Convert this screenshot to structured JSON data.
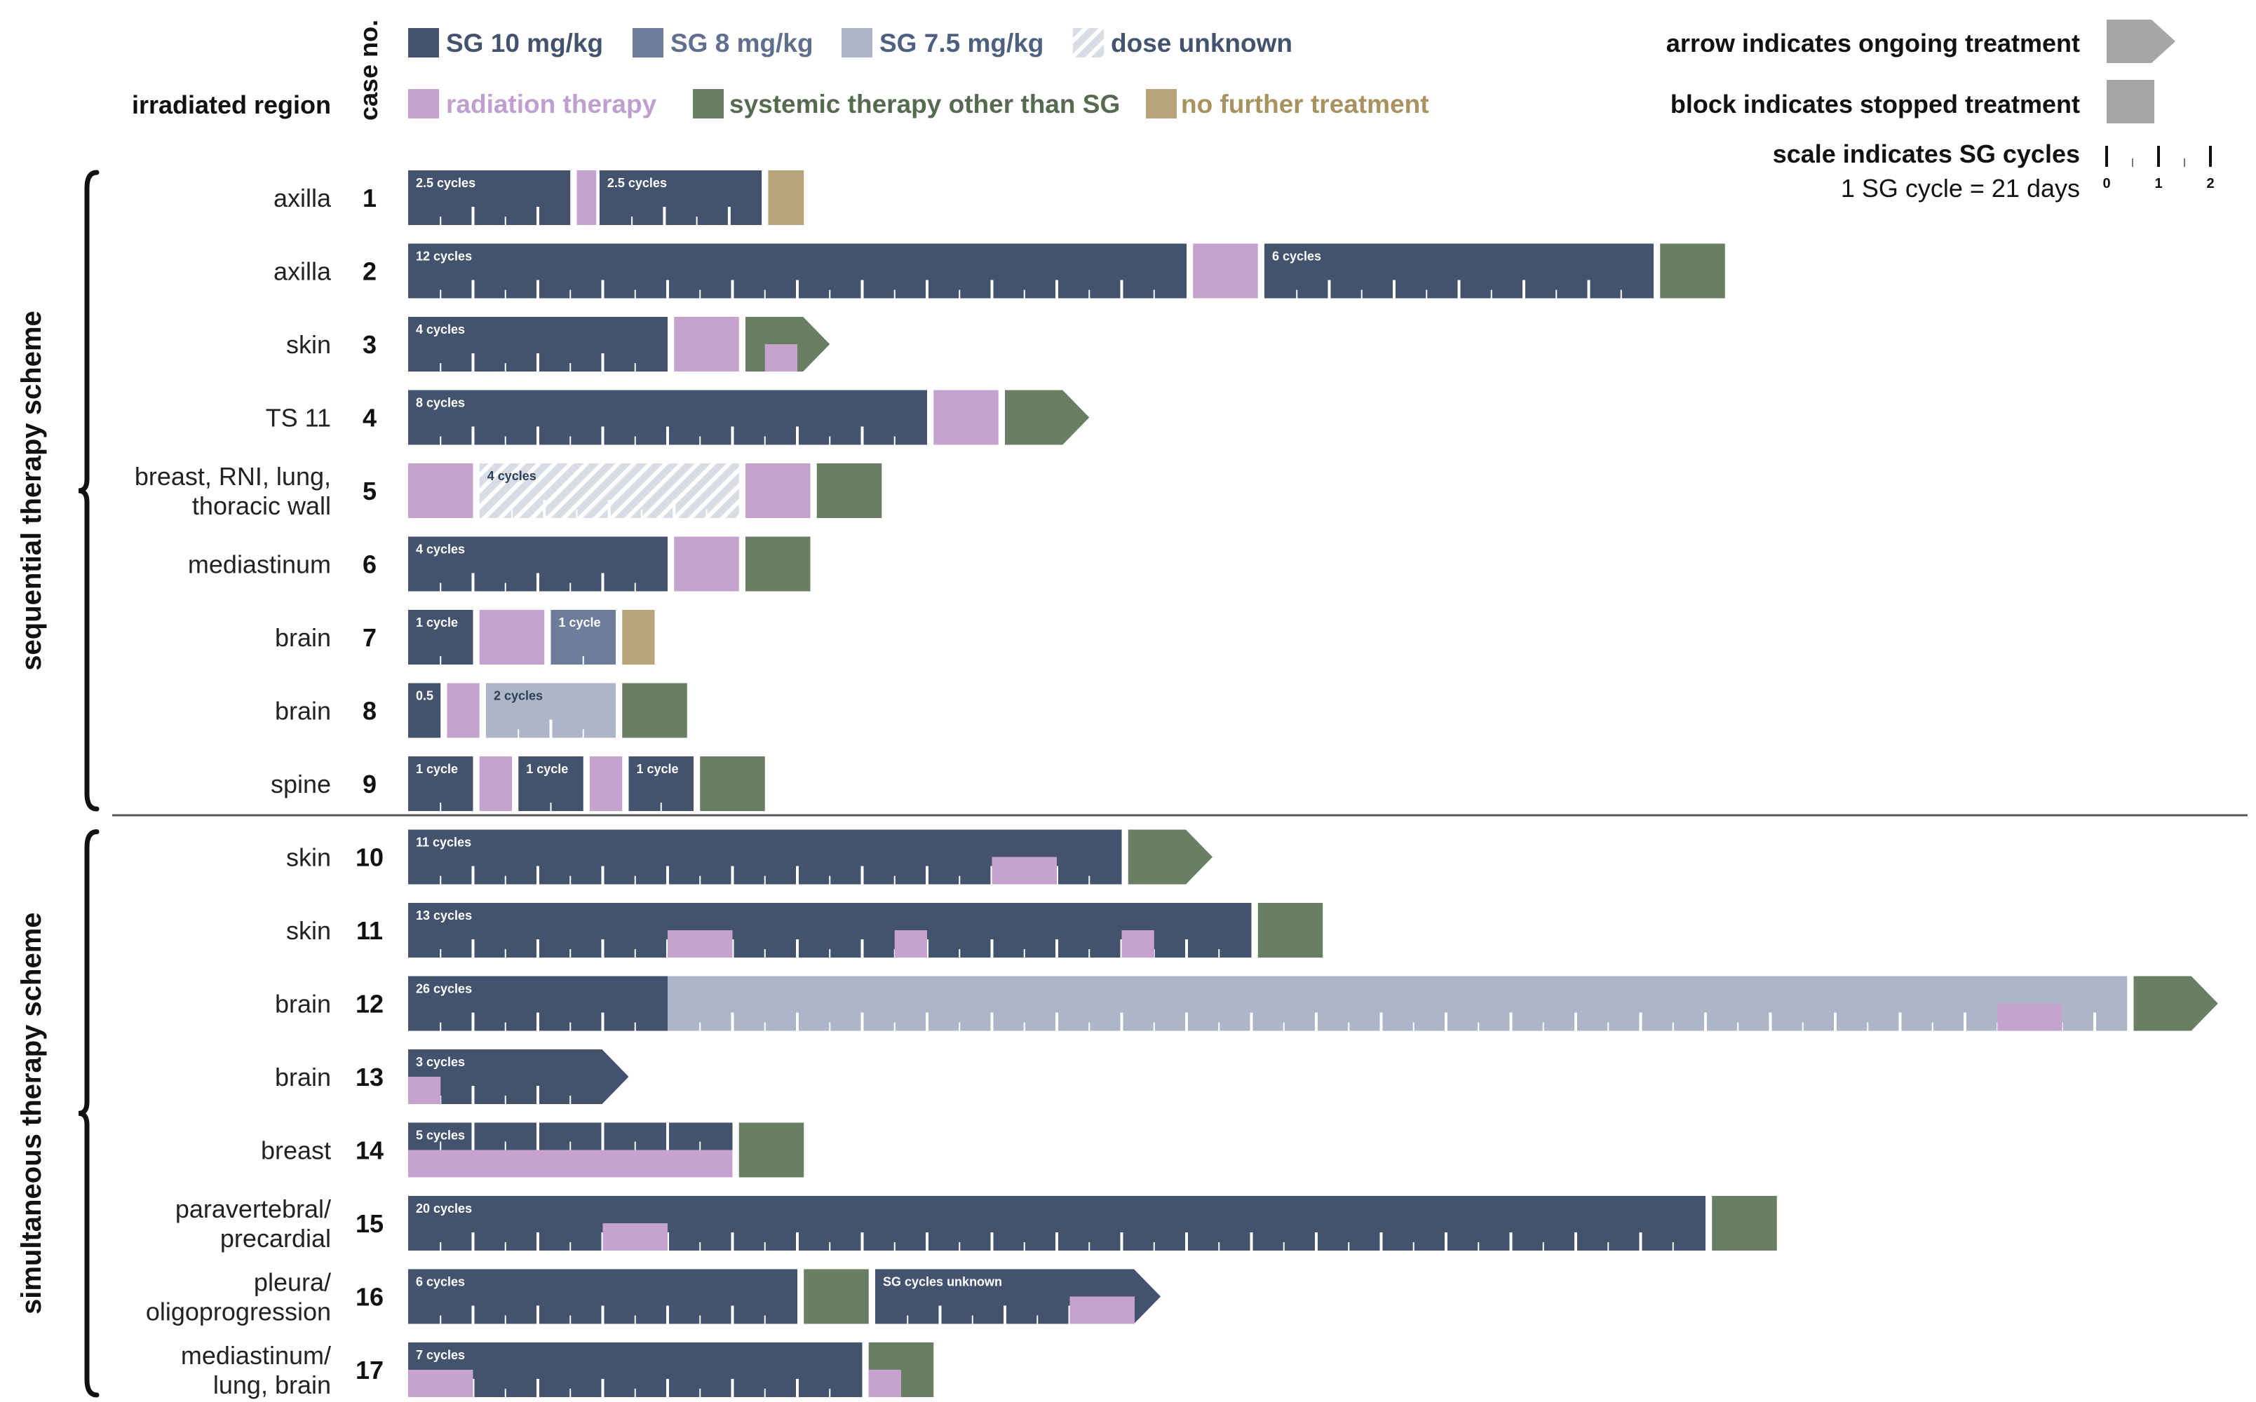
{
  "header": {
    "region_header": "irradiated  region",
    "case_header": "case no."
  },
  "legend": {
    "items": [
      {
        "key": "sg10",
        "label": "SG 10 mg/kg",
        "color": "#43536e",
        "text_color": "#43536e"
      },
      {
        "key": "sg8",
        "label": "SG 8 mg/kg",
        "color": "#6d7c9a",
        "text_color": "#5f6f8d"
      },
      {
        "key": "sg75",
        "label": "SG 7.5 mg/kg",
        "color": "#adb6c8",
        "text_color": "#4e6080"
      },
      {
        "key": "unknown",
        "label": "dose unknown",
        "color": "#c9d0db",
        "text_color": "#43536e"
      },
      {
        "key": "rt",
        "label": "radiation therapy",
        "color": "#c6a3cf",
        "text_color": "#bf9fd0"
      },
      {
        "key": "sys",
        "label": "systemic therapy other than SG",
        "color": "#687f64",
        "text_color": "#556b50"
      },
      {
        "key": "none",
        "label": "no further treatment",
        "color": "#b9a47b",
        "text_color": "#a8925f"
      }
    ],
    "arrow_text": "arrow indicates ongoing treatment",
    "block_text": "block indicates stopped treatment",
    "scale_text": "scale indicates SG cycles",
    "cycle_text": "1 SG cycle = 21 days",
    "scale_ticks": [
      "0",
      "1",
      "2"
    ],
    "indicator_color": "#a6a6a6"
  },
  "schemes": [
    {
      "label": "sequential therapy scheme",
      "cases": [
        1,
        9
      ]
    },
    {
      "label": "simultaneous therapy scheme",
      "cases": [
        10,
        17
      ]
    }
  ],
  "chart_data": {
    "type": "timeline",
    "unit": "SG cycles (1 cycle = 21 days)",
    "rows": [
      {
        "case": "1",
        "region": [
          "axilla"
        ],
        "segments": [
          {
            "t": "sg10",
            "s": 0,
            "d": 2.5,
            "label": "2.5 cycles"
          },
          {
            "t": "rt",
            "s": 2.6,
            "d": 0.3
          },
          {
            "t": "sg10",
            "s": 2.95,
            "d": 2.5,
            "label": "2.5 cycles"
          },
          {
            "t": "none",
            "s": 5.55,
            "d": 0.55
          }
        ]
      },
      {
        "case": "2",
        "region": [
          "axilla"
        ],
        "segments": [
          {
            "t": "sg10",
            "s": 0,
            "d": 12,
            "label": "12 cycles"
          },
          {
            "t": "rt",
            "s": 12.1,
            "d": 1.0
          },
          {
            "t": "sg10",
            "s": 13.2,
            "d": 6,
            "label": "6 cycles"
          },
          {
            "t": "sys",
            "s": 19.3,
            "d": 1.0
          }
        ]
      },
      {
        "case": "3",
        "region": [
          "skin"
        ],
        "segments": [
          {
            "t": "sg10",
            "s": 0,
            "d": 4,
            "label": "4 cycles"
          },
          {
            "t": "rt",
            "s": 4.1,
            "d": 1.0
          },
          {
            "t": "sys",
            "s": 5.2,
            "d": 1.3,
            "arrow": true
          },
          {
            "t": "rt",
            "s": 5.5,
            "d": 0.5,
            "lower": true
          }
        ]
      },
      {
        "case": "4",
        "region": [
          "TS 11"
        ],
        "segments": [
          {
            "t": "sg10",
            "s": 0,
            "d": 8,
            "label": "8 cycles"
          },
          {
            "t": "rt",
            "s": 8.1,
            "d": 1.0
          },
          {
            "t": "sys",
            "s": 9.2,
            "d": 1.3,
            "arrow": true
          }
        ]
      },
      {
        "case": "5",
        "region": [
          "breast, RNI, lung,",
          "thoracic wall"
        ],
        "segments": [
          {
            "t": "rt",
            "s": 0,
            "d": 1.0
          },
          {
            "t": "unknown",
            "s": 1.1,
            "d": 4,
            "label": "4 cycles"
          },
          {
            "t": "rt",
            "s": 5.2,
            "d": 1.0
          },
          {
            "t": "sys",
            "s": 6.3,
            "d": 1.0
          }
        ]
      },
      {
        "case": "6",
        "region": [
          "mediastinum"
        ],
        "segments": [
          {
            "t": "sg10",
            "s": 0,
            "d": 4,
            "label": "4 cycles"
          },
          {
            "t": "rt",
            "s": 4.1,
            "d": 1.0
          },
          {
            "t": "sys",
            "s": 5.2,
            "d": 1.0
          }
        ]
      },
      {
        "case": "7",
        "region": [
          "brain"
        ],
        "segments": [
          {
            "t": "sg10",
            "s": 0,
            "d": 1,
            "label": "1 cycle"
          },
          {
            "t": "rt",
            "s": 1.1,
            "d": 1.0
          },
          {
            "t": "sg8",
            "s": 2.2,
            "d": 1,
            "label": "1 cycle"
          },
          {
            "t": "none",
            "s": 3.3,
            "d": 0.5
          }
        ]
      },
      {
        "case": "8",
        "region": [
          "brain"
        ],
        "segments": [
          {
            "t": "sg10",
            "s": 0,
            "d": 0.5,
            "label": "0.5"
          },
          {
            "t": "rt",
            "s": 0.6,
            "d": 0.5
          },
          {
            "t": "sg75",
            "s": 1.2,
            "d": 2,
            "label": "2 cycles"
          },
          {
            "t": "sys",
            "s": 3.3,
            "d": 1.0
          }
        ]
      },
      {
        "case": "9",
        "region": [
          "spine"
        ],
        "segments": [
          {
            "t": "sg10",
            "s": 0,
            "d": 1,
            "label": "1 cycle"
          },
          {
            "t": "rt",
            "s": 1.1,
            "d": 0.5
          },
          {
            "t": "sg10",
            "s": 1.7,
            "d": 1,
            "label": "1 cycle"
          },
          {
            "t": "rt",
            "s": 2.8,
            "d": 0.5
          },
          {
            "t": "sg10",
            "s": 3.4,
            "d": 1,
            "label": "1 cycle"
          },
          {
            "t": "sys",
            "s": 4.5,
            "d": 1.0
          }
        ]
      },
      {
        "case": "10",
        "region": [
          "skin"
        ],
        "segments": [
          {
            "t": "sg10",
            "s": 0,
            "d": 11,
            "label": "11 cycles"
          },
          {
            "t": "rt",
            "s": 9,
            "d": 1.0,
            "lower": true
          },
          {
            "t": "sys",
            "s": 11.1,
            "d": 1.3,
            "arrow": true
          }
        ]
      },
      {
        "case": "11",
        "region": [
          "skin"
        ],
        "segments": [
          {
            "t": "sg10",
            "s": 0,
            "d": 13,
            "label": "13 cycles"
          },
          {
            "t": "rt",
            "s": 4,
            "d": 1.0,
            "lower": true
          },
          {
            "t": "rt",
            "s": 7.5,
            "d": 0.5,
            "lower": true
          },
          {
            "t": "rt",
            "s": 11,
            "d": 0.5,
            "lower": true
          },
          {
            "t": "sys",
            "s": 13.1,
            "d": 1.0
          }
        ]
      },
      {
        "case": "12",
        "region": [
          "brain"
        ],
        "segments": [
          {
            "t": "sg10",
            "s": 0,
            "d": 4,
            "label": "26 cycles"
          },
          {
            "t": "sg75",
            "s": 4,
            "d": 22.5
          },
          {
            "t": "rt",
            "s": 24.5,
            "d": 1.0,
            "lower": true
          },
          {
            "t": "sys",
            "s": 26.6,
            "d": 1.3,
            "arrow": true
          }
        ]
      },
      {
        "case": "13",
        "region": [
          "brain"
        ],
        "segments": [
          {
            "t": "sg10",
            "s": 0,
            "d": 3.4,
            "label": "3 cycles",
            "arrow": true
          },
          {
            "t": "rt",
            "s": 0,
            "d": 0.5,
            "lower": true
          }
        ]
      },
      {
        "case": "14",
        "region": [
          "breast"
        ],
        "segments": [
          {
            "t": "sg10",
            "s": 0,
            "d": 5,
            "label": "5 cycles",
            "upper": true
          },
          {
            "t": "rt",
            "s": 0,
            "d": 5,
            "lower": true
          },
          {
            "t": "sys",
            "s": 5.1,
            "d": 1.0
          }
        ]
      },
      {
        "case": "15",
        "region": [
          "paravertebral/",
          "precardial"
        ],
        "segments": [
          {
            "t": "sg10",
            "s": 0,
            "d": 20,
            "label": "20 cycles"
          },
          {
            "t": "rt",
            "s": 3,
            "d": 1.0,
            "lower": true
          },
          {
            "t": "sys",
            "s": 20.1,
            "d": 1.0
          }
        ]
      },
      {
        "case": "16",
        "region": [
          "pleura/",
          "oligoprogression"
        ],
        "segments": [
          {
            "t": "sg10",
            "s": 0,
            "d": 6,
            "label": "6 cycles"
          },
          {
            "t": "sys",
            "s": 6.1,
            "d": 1.0
          },
          {
            "t": "sg10",
            "s": 7.2,
            "d": 4.4,
            "label": "SG cycles unknown",
            "arrow": true
          },
          {
            "t": "rt",
            "s": 10.2,
            "d": 1.0,
            "lower": true
          }
        ]
      },
      {
        "case": "17",
        "region": [
          "mediastinum/",
          "lung, brain"
        ],
        "segments": [
          {
            "t": "sg10",
            "s": 0,
            "d": 7,
            "label": "7 cycles"
          },
          {
            "t": "rt",
            "s": 0,
            "d": 1.0,
            "lower": true
          },
          {
            "t": "sys",
            "s": 7.1,
            "d": 1.0
          },
          {
            "t": "rt",
            "s": 7.1,
            "d": 0.5,
            "lower": true
          }
        ]
      }
    ]
  }
}
